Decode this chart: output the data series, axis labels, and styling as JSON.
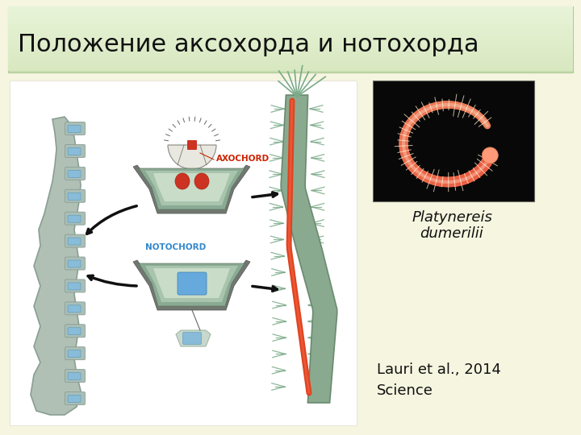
{
  "title": "Положение аксохорда и нотохорда",
  "title_fontsize": 22,
  "citation_text": "Lauri et al., 2014\nScience",
  "species_line1": "Platynereis",
  "species_line2": "dumerilii",
  "bg_color": "#f5f5e0",
  "title_bar_color": "#d8ecc0",
  "citation_fontsize": 13,
  "species_fontsize": 13,
  "axochord_color": "#cc3300",
  "notochord_color": "#3388cc",
  "cross_section_color": "#8aaa94",
  "cross_inner_color": "#a8c4ac",
  "cross_light_color": "#c8dcc8",
  "spine_color": "#b0c0b4",
  "spine_edge": "#8a9e94",
  "disc_color": "#88bcd8",
  "worm_body_color": "#8aaa90",
  "worm_edge": "#6a8a70",
  "red_stripe": "#dd4422",
  "arrow_color": "#111111"
}
